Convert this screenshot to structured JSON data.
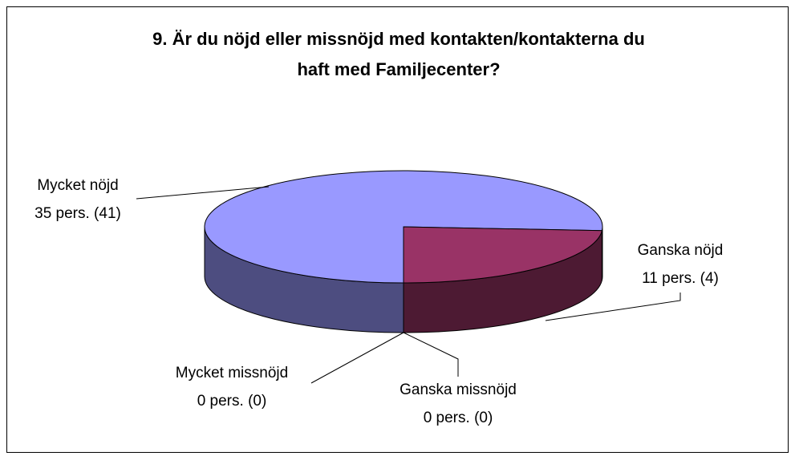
{
  "chart_data": {
    "type": "pie3d",
    "title_lines": [
      "9. Är du nöjd eller missnöjd med kontakten/kontakterna du",
      "haft med Familjecenter?"
    ],
    "categories": [
      "Mycket nöjd",
      "Ganska nöjd",
      "Ganska missnöjd",
      "Mycket missnöjd"
    ],
    "values": [
      35,
      11,
      0,
      0
    ],
    "value_labels": [
      "35 pers. (41)",
      "11 pers. (4)",
      "0 pers. (0)",
      "0 pers. (0)"
    ],
    "colors": [
      "#9999ff",
      "#993366",
      "#ffffcc",
      "#ccffff"
    ]
  }
}
